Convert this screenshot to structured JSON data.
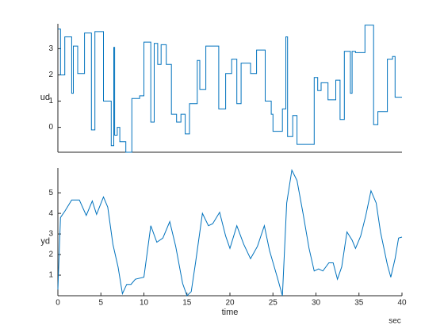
{
  "chart_data": [
    {
      "type": "stairs",
      "ylabel": "ud",
      "color": "#0072bd",
      "x": [
        0,
        0.3,
        0.8,
        1.6,
        1.8,
        2.3,
        3.1,
        3.9,
        4.3,
        5.3,
        6.2,
        6.5,
        6.6,
        6.9,
        7.2,
        7.9,
        8.6,
        9.5,
        10.0,
        10.8,
        11.2,
        11.6,
        12.0,
        12.6,
        13.2,
        13.8,
        14.3,
        14.8,
        15.3,
        16.2,
        16.5,
        17.2,
        18.7,
        19.5,
        20.2,
        20.8,
        21.3,
        22.4,
        23.1,
        24.1,
        24.8,
        25.0,
        26.1,
        26.5,
        26.7,
        27.3,
        27.8,
        29.8,
        30.2,
        30.6,
        31.4,
        32.3,
        32.8,
        33.3,
        34.0,
        34.2,
        34.6,
        35.7,
        36.7,
        37.2,
        38.3,
        38.9,
        39.2
      ],
      "values": [
        3.75,
        2.0,
        3.45,
        1.3,
        3.1,
        2.05,
        3.6,
        -0.1,
        3.65,
        1.0,
        -0.7,
        3.05,
        -0.3,
        0.0,
        -0.55,
        -0.95,
        1.1,
        1.2,
        3.25,
        0.2,
        3.2,
        2.4,
        3.15,
        2.4,
        0.5,
        0.2,
        0.5,
        -0.25,
        0.9,
        2.55,
        1.45,
        3.1,
        0.7,
        2.05,
        2.6,
        0.9,
        2.45,
        2.05,
        2.95,
        1.0,
        0.5,
        -0.15,
        0.7,
        3.45,
        -0.35,
        0.45,
        -0.65,
        1.9,
        1.4,
        1.7,
        1.05,
        1.8,
        0.3,
        2.9,
        1.3,
        2.9,
        2.85,
        3.9,
        0.1,
        0.6,
        2.6,
        2.7,
        1.15
      ],
      "xlim": [
        0,
        40
      ],
      "ylim": [
        -0.95,
        3.95
      ],
      "yticks": [
        0,
        1,
        2,
        3
      ]
    },
    {
      "type": "line",
      "ylabel": "yd",
      "xlabel": "time",
      "xunit": "sec",
      "color": "#0072bd",
      "x": [
        0,
        0.3,
        0.8,
        1.6,
        2.5,
        3.3,
        4.0,
        4.5,
        5.3,
        5.8,
        6.4,
        7.0,
        7.5,
        8.0,
        8.5,
        9.0,
        10.0,
        10.8,
        11.5,
        12.2,
        13.0,
        13.7,
        14.5,
        15.0,
        15.5,
        16.0,
        16.8,
        17.5,
        18.0,
        18.8,
        19.5,
        20.0,
        20.8,
        21.6,
        22.4,
        23.2,
        24.0,
        24.6,
        25.5,
        26.1,
        26.6,
        27.2,
        27.8,
        28.5,
        29.2,
        29.8,
        30.3,
        30.8,
        31.5,
        32.0,
        32.5,
        33.0,
        33.6,
        34.2,
        34.6,
        35.2,
        35.8,
        36.4,
        37.0,
        37.5,
        38.3,
        38.7,
        39.2,
        39.6,
        40
      ],
      "values": [
        0.3,
        3.8,
        4.1,
        4.65,
        4.65,
        3.9,
        4.6,
        3.95,
        4.8,
        4.3,
        2.5,
        1.4,
        0.1,
        0.55,
        0.55,
        0.8,
        0.9,
        3.4,
        2.6,
        2.8,
        3.6,
        2.4,
        0.6,
        0.0,
        0.2,
        1.6,
        4.0,
        3.4,
        3.5,
        4.05,
        2.9,
        2.3,
        3.4,
        2.5,
        1.8,
        2.4,
        3.4,
        2.2,
        0.9,
        0.0,
        4.5,
        6.1,
        5.6,
        4.0,
        2.3,
        1.2,
        1.3,
        1.2,
        1.6,
        1.6,
        0.8,
        1.4,
        3.1,
        2.7,
        2.3,
        2.9,
        3.9,
        5.1,
        4.5,
        3.1,
        1.5,
        0.9,
        1.8,
        2.8,
        2.85
      ],
      "xlim": [
        0,
        40
      ],
      "ylim": [
        0,
        6.2
      ],
      "yticks": [
        1,
        2,
        3,
        4,
        5
      ],
      "xticks": [
        0,
        5,
        10,
        15,
        20,
        25,
        30,
        35,
        40
      ]
    }
  ]
}
